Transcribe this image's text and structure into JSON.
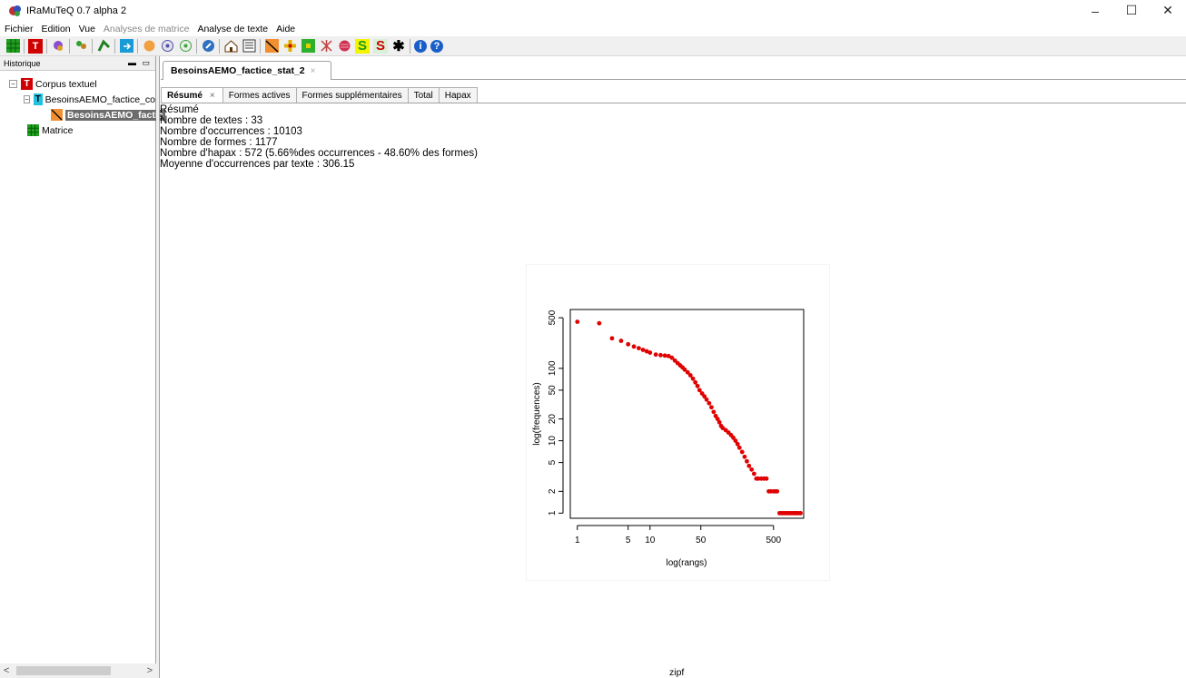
{
  "window": {
    "title": "IRaMuTeQ 0.7 alpha 2",
    "minimize": "–",
    "maximize": "☐",
    "close": "✕"
  },
  "menu": [
    {
      "label": "Fichier",
      "enabled": true
    },
    {
      "label": "Edition",
      "enabled": true
    },
    {
      "label": "Vue",
      "enabled": true
    },
    {
      "label": "Analyses de matrice",
      "enabled": false
    },
    {
      "label": "Analyse de texte",
      "enabled": true
    },
    {
      "label": "Aide",
      "enabled": true
    }
  ],
  "toolbar": {
    "icons": [
      "matrix-icon",
      "text-corpus-icon",
      "stats-icon",
      "specificities-icon",
      "similarity-icon",
      "export-icon",
      "orange-circle-icon",
      "chd-icon",
      "prototype-icon",
      "compass-icon",
      "home-icon",
      "list-icon",
      "zipf-icon",
      "segments-icon",
      "matrix-green-icon",
      "network-icon",
      "cloud-icon",
      "s-green-icon",
      "s-red-icon",
      "star-icon",
      "info-icon",
      "help-icon"
    ],
    "s1": "S",
    "s2": "S",
    "star": "✱",
    "info": "i",
    "help": "?",
    "t": "T"
  },
  "left_panel": {
    "title": "Historique",
    "controls": "▬ ▭",
    "tree": {
      "corpus_label": "Corpus textuel",
      "corpus_child": "BesoinsAEMO_factice_co",
      "stat_label": "BesoinsAEMO_factic",
      "matrix_label": "Matrice"
    },
    "scroll_left": "<",
    "scroll_right": ">"
  },
  "doc_tab": {
    "label": "BesoinsAEMO_factice_stat_2",
    "close": "×"
  },
  "sub_tabs": [
    {
      "label": "Résumé",
      "close": "×"
    },
    {
      "label": "Formes actives"
    },
    {
      "label": "Formes supplémentaires"
    },
    {
      "label": "Total"
    },
    {
      "label": "Hapax"
    }
  ],
  "summary": {
    "heading": "Résumé",
    "lines": [
      "Nombre de textes : 33",
      "Nombre d'occurrences : 10103",
      "Nombre de formes : 1177",
      "Nombre d'hapax : 572 (5.66%des occurrences - 48.60% des formes)",
      "Moyenne d'occurrences par texte : 306.15"
    ]
  },
  "caption": "zipf",
  "chart_data": {
    "type": "scatter",
    "title": "",
    "xlabel": "log(rangs)",
    "ylabel": "log(frequences)",
    "xscale": "log",
    "yscale": "log",
    "xlim": [
      0.8,
      1300
    ],
    "ylim": [
      0.85,
      650
    ],
    "xticks": [
      1,
      5,
      10,
      50,
      500
    ],
    "yticks": [
      1,
      2,
      5,
      10,
      20,
      50,
      100,
      500
    ],
    "color": "#e00000",
    "points": [
      [
        1,
        440
      ],
      [
        2,
        420
      ],
      [
        3,
        260
      ],
      [
        4,
        240
      ],
      [
        5,
        215
      ],
      [
        6,
        200
      ],
      [
        7,
        190
      ],
      [
        8,
        180
      ],
      [
        9,
        172
      ],
      [
        10,
        165
      ],
      [
        12,
        155
      ],
      [
        14,
        152
      ],
      [
        16,
        150
      ],
      [
        18,
        148
      ],
      [
        20,
        140
      ],
      [
        22,
        128
      ],
      [
        24,
        118
      ],
      [
        26,
        110
      ],
      [
        28,
        103
      ],
      [
        30,
        96
      ],
      [
        33,
        88
      ],
      [
        36,
        80
      ],
      [
        39,
        72
      ],
      [
        42,
        64
      ],
      [
        45,
        57
      ],
      [
        48,
        50
      ],
      [
        52,
        45
      ],
      [
        56,
        41
      ],
      [
        60,
        37
      ],
      [
        65,
        33
      ],
      [
        70,
        29
      ],
      [
        75,
        25
      ],
      [
        80,
        22
      ],
      [
        85,
        20
      ],
      [
        90,
        18
      ],
      [
        95,
        16
      ],
      [
        100,
        15
      ],
      [
        110,
        14
      ],
      [
        120,
        13
      ],
      [
        130,
        12
      ],
      [
        140,
        11
      ],
      [
        150,
        10
      ],
      [
        160,
        9
      ],
      [
        170,
        8
      ],
      [
        185,
        7
      ],
      [
        200,
        6
      ],
      [
        215,
        5.2
      ],
      [
        230,
        4.5
      ],
      [
        250,
        4
      ],
      [
        270,
        3.5
      ],
      [
        290,
        3
      ],
      [
        310,
        3
      ],
      [
        340,
        3
      ],
      [
        370,
        3
      ],
      [
        400,
        3
      ],
      [
        430,
        2
      ],
      [
        460,
        2
      ],
      [
        500,
        2
      ],
      [
        530,
        2
      ],
      [
        560,
        2
      ],
      [
        605,
        1
      ],
      [
        640,
        1
      ],
      [
        680,
        1
      ],
      [
        720,
        1
      ],
      [
        760,
        1
      ],
      [
        800,
        1
      ],
      [
        850,
        1
      ],
      [
        900,
        1
      ],
      [
        950,
        1
      ],
      [
        1000,
        1
      ],
      [
        1050,
        1
      ],
      [
        1100,
        1
      ],
      [
        1177,
        1
      ]
    ]
  }
}
